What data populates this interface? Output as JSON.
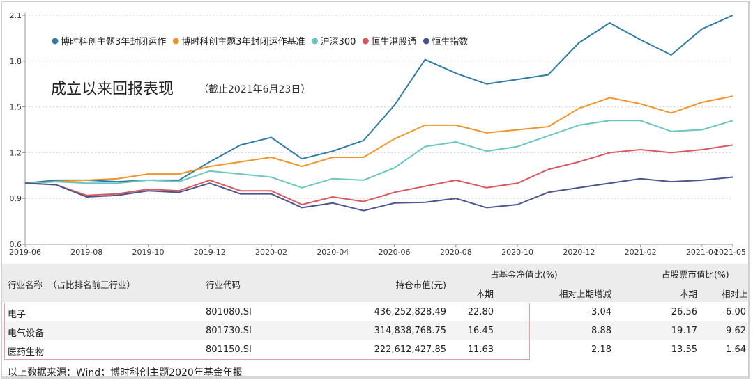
{
  "chart_data": {
    "type": "line",
    "title": "成立以来回报表现",
    "subtitle": "（截止2021年6月23日）",
    "xlabel": "",
    "ylabel": "",
    "ylim": [
      0.6,
      2.1
    ],
    "yticks": [
      "0.6",
      "0.9",
      "1.2",
      "1.5",
      "1.8",
      "2.1"
    ],
    "xticks": [
      "2019-06",
      "2019-08",
      "2019-10",
      "2019-12",
      "2020-02",
      "2020-04",
      "2020-06",
      "2020-08",
      "2020-10",
      "2020-12",
      "2021-02",
      "2021-04",
      "2021-05"
    ],
    "grid": true,
    "legend_position": "top-left",
    "x": [
      "2019-06",
      "2019-07",
      "2019-08",
      "2019-09",
      "2019-10",
      "2019-11",
      "2019-12",
      "2020-01",
      "2020-02",
      "2020-03",
      "2020-04",
      "2020-05",
      "2020-06",
      "2020-07",
      "2020-08",
      "2020-09",
      "2020-10",
      "2020-11",
      "2020-12",
      "2021-01",
      "2021-02",
      "2021-03",
      "2021-04",
      "2021-05"
    ],
    "series": [
      {
        "name": "博时科创主题3年封闭运作",
        "color": "#2e7ca6",
        "values": [
          1.0,
          1.02,
          1.02,
          1.01,
          1.02,
          1.02,
          1.14,
          1.25,
          1.3,
          1.16,
          1.21,
          1.28,
          1.51,
          1.81,
          1.72,
          1.65,
          1.68,
          1.71,
          1.92,
          2.05,
          1.94,
          1.84,
          2.01,
          2.1
        ]
      },
      {
        "name": "博时科创主题3年封闭运作基准",
        "color": "#f0952a",
        "values": [
          1.0,
          1.01,
          1.02,
          1.03,
          1.06,
          1.06,
          1.11,
          1.14,
          1.17,
          1.11,
          1.17,
          1.17,
          1.29,
          1.38,
          1.38,
          1.33,
          1.35,
          1.37,
          1.49,
          1.56,
          1.52,
          1.46,
          1.53,
          1.57
        ]
      },
      {
        "name": "沪深300",
        "color": "#6cc5c0",
        "values": [
          1.0,
          1.01,
          1.0,
          1.0,
          1.02,
          1.01,
          1.08,
          1.06,
          1.04,
          0.97,
          1.03,
          1.02,
          1.1,
          1.24,
          1.27,
          1.21,
          1.24,
          1.31,
          1.38,
          1.41,
          1.41,
          1.34,
          1.35,
          1.41
        ]
      },
      {
        "name": "恒生港股通",
        "color": "#d9585e",
        "values": [
          1.0,
          0.99,
          0.92,
          0.93,
          0.96,
          0.95,
          1.02,
          0.95,
          0.95,
          0.86,
          0.91,
          0.88,
          0.94,
          0.98,
          1.02,
          0.97,
          1.0,
          1.09,
          1.14,
          1.2,
          1.22,
          1.2,
          1.22,
          1.25
        ]
      },
      {
        "name": "恒生指数",
        "color": "#4a5590",
        "values": [
          1.0,
          0.99,
          0.91,
          0.92,
          0.95,
          0.94,
          1.0,
          0.93,
          0.93,
          0.84,
          0.87,
          0.82,
          0.87,
          0.875,
          0.9,
          0.84,
          0.86,
          0.94,
          0.97,
          1.0,
          1.03,
          1.01,
          1.02,
          1.04
        ]
      }
    ]
  },
  "table": {
    "headers": {
      "name": "行业名称",
      "name_note": "（占比排名前三行业）",
      "code": "行业代码",
      "market_value": "持仓市值(元)",
      "fund_nav_group": "占基金净值比(%)",
      "stock_value_group": "占股票市值比(%)",
      "current": "本期",
      "change": "相对上期增减"
    },
    "rows": [
      {
        "name": "电子",
        "code": "801080.SI",
        "market_value": "436,252,828.49",
        "nav_current": "22.80",
        "nav_change": "-3.04",
        "stock_current": "26.56",
        "stock_change": "-6.00"
      },
      {
        "name": "电气设备",
        "code": "801730.SI",
        "market_value": "314,838,768.75",
        "nav_current": "16.45",
        "nav_change": "8.88",
        "stock_current": "19.17",
        "stock_change": "9.62"
      },
      {
        "name": "医药生物",
        "code": "801150.SI",
        "market_value": "222,612,427.85",
        "nav_current": "11.63",
        "nav_change": "2.18",
        "stock_current": "13.55",
        "stock_change": "1.64"
      }
    ],
    "footnote": "以上数据来源：Wind；博时科创主题2020年基金年报"
  }
}
